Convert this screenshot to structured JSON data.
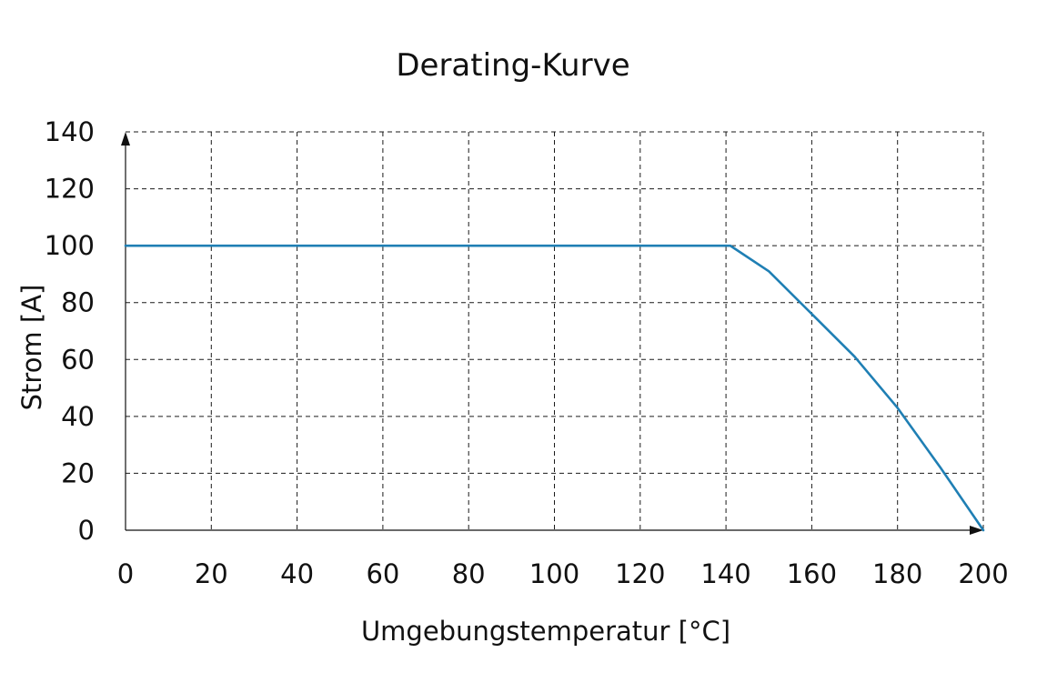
{
  "chart_data": {
    "type": "line",
    "title": "Derating-Kurve",
    "xlabel": "Umgebungstemperatur [°C]",
    "ylabel": "Strom [A]",
    "xlim": [
      0,
      200
    ],
    "ylim": [
      0,
      140
    ],
    "x_ticks": [
      "0",
      "20",
      "40",
      "60",
      "80",
      "100",
      "120",
      "140",
      "160",
      "180",
      "200"
    ],
    "y_ticks": [
      "0",
      "20",
      "40",
      "60",
      "80",
      "100",
      "120",
      "140"
    ],
    "grid": true,
    "series": [
      {
        "color": "#1f7fb4",
        "x": [
          0,
          141,
          150,
          160,
          170,
          180,
          190,
          200
        ],
        "y": [
          100,
          100,
          91,
          76,
          61,
          43,
          22,
          0
        ]
      }
    ]
  }
}
